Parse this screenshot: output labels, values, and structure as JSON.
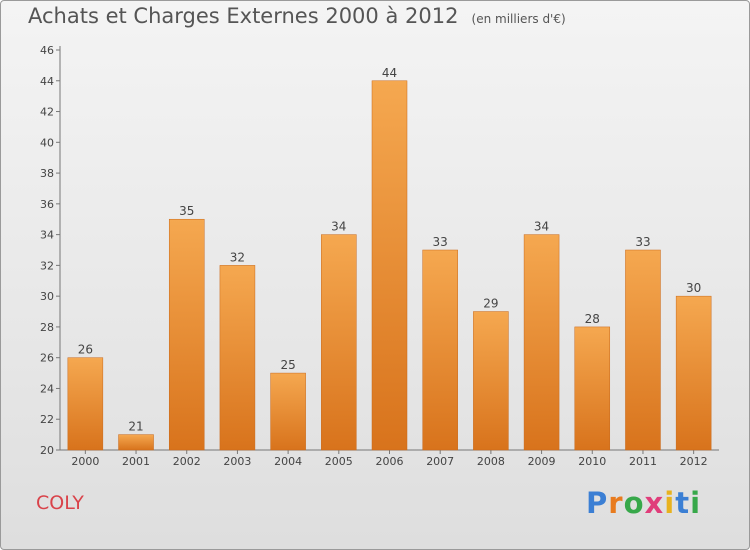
{
  "title": {
    "main": "Achats et Charges Externes 2000 à 2012",
    "subtitle": "(en milliers d'€)"
  },
  "footer": {
    "place": "COLY",
    "brand": [
      "P",
      "r",
      "o",
      "x",
      "i",
      "t",
      "i"
    ]
  },
  "chart_data": {
    "type": "bar",
    "categories": [
      "2000",
      "2001",
      "2002",
      "2003",
      "2004",
      "2005",
      "2006",
      "2007",
      "2008",
      "2009",
      "2010",
      "2011",
      "2012"
    ],
    "values": [
      26,
      21,
      35,
      32,
      25,
      34,
      44,
      33,
      29,
      34,
      28,
      33,
      30
    ],
    "ylim": [
      20,
      46
    ],
    "yticks": [
      20,
      22,
      24,
      26,
      28,
      30,
      32,
      34,
      36,
      38,
      40,
      42,
      44,
      46
    ],
    "grid": false,
    "legend": "none",
    "colors": {
      "bar_top": "#f5a850",
      "bar_bottom": "#d8731c",
      "bar_edge": "#c8681a"
    }
  }
}
